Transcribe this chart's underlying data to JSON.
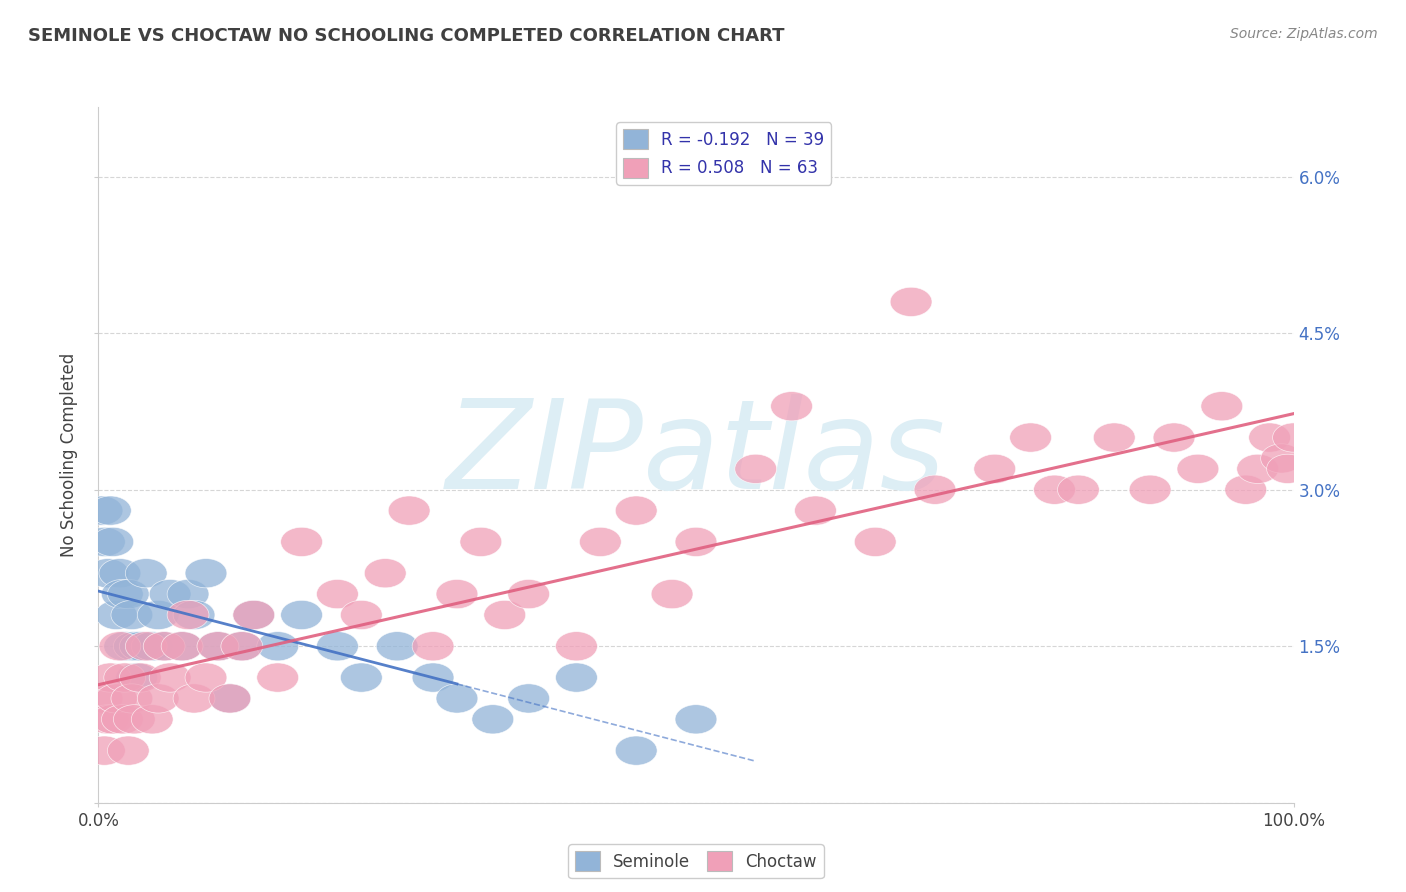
{
  "title": "SEMINOLE VS CHOCTAW NO SCHOOLING COMPLETED CORRELATION CHART",
  "source_text": "Source: ZipAtlas.com",
  "ylabel": "No Schooling Completed",
  "xlim": [
    0,
    100
  ],
  "ylim": [
    0,
    6.667
  ],
  "yticks": [
    0,
    1.5,
    3.0,
    4.5,
    6.0
  ],
  "ytick_labels": [
    "",
    "1.5%",
    "3.0%",
    "4.5%",
    "6.0%"
  ],
  "xtick_labels": [
    "0.0%",
    "100.0%"
  ],
  "legend_line1": "R = -0.192   N = 39",
  "legend_line2": "R = 0.508   N = 63",
  "seminole_color": "#92b4d8",
  "choctaw_color": "#f0a0b8",
  "seminole_line_color": "#4472c4",
  "choctaw_line_color": "#e06080",
  "background_color": "#ffffff",
  "grid_color": "#cccccc",
  "watermark_color": "#ddeef5",
  "seminole_x": [
    0.3,
    0.5,
    0.8,
    1.0,
    1.2,
    1.5,
    1.8,
    2.0,
    2.2,
    2.5,
    2.8,
    3.0,
    3.2,
    3.5,
    4.0,
    4.5,
    5.0,
    5.5,
    6.0,
    7.0,
    7.5,
    8.0,
    9.0,
    10.0,
    11.0,
    12.0,
    13.0,
    15.0,
    17.0,
    20.0,
    22.0,
    25.0,
    28.0,
    30.0,
    33.0,
    36.0,
    40.0,
    45.0,
    50.0
  ],
  "seminole_y": [
    2.8,
    2.5,
    2.2,
    2.8,
    2.5,
    1.8,
    2.2,
    2.0,
    1.5,
    2.0,
    1.8,
    1.5,
    1.2,
    1.5,
    2.2,
    1.5,
    1.8,
    1.5,
    2.0,
    1.5,
    2.0,
    1.8,
    2.2,
    1.5,
    1.0,
    1.5,
    1.8,
    1.5,
    1.8,
    1.5,
    1.2,
    1.5,
    1.2,
    1.0,
    0.8,
    1.0,
    1.2,
    0.5,
    0.8
  ],
  "choctaw_x": [
    0.3,
    0.5,
    0.8,
    1.0,
    1.2,
    1.5,
    1.8,
    2.0,
    2.2,
    2.5,
    2.8,
    3.0,
    3.5,
    4.0,
    4.5,
    5.0,
    5.5,
    6.0,
    7.0,
    7.5,
    8.0,
    9.0,
    10.0,
    11.0,
    12.0,
    13.0,
    15.0,
    17.0,
    20.0,
    22.0,
    24.0,
    26.0,
    28.0,
    30.0,
    32.0,
    34.0,
    36.0,
    40.0,
    42.0,
    45.0,
    48.0,
    50.0,
    55.0,
    58.0,
    60.0,
    65.0,
    68.0,
    70.0,
    75.0,
    78.0,
    80.0,
    82.0,
    85.0,
    88.0,
    90.0,
    92.0,
    94.0,
    96.0,
    97.0,
    98.0,
    99.0,
    99.5,
    100.0
  ],
  "choctaw_y": [
    1.0,
    0.5,
    0.8,
    1.2,
    0.8,
    1.0,
    1.5,
    0.8,
    1.2,
    0.5,
    1.0,
    0.8,
    1.2,
    1.5,
    0.8,
    1.0,
    1.5,
    1.2,
    1.5,
    1.8,
    1.0,
    1.2,
    1.5,
    1.0,
    1.5,
    1.8,
    1.2,
    2.5,
    2.0,
    1.8,
    2.2,
    2.8,
    1.5,
    2.0,
    2.5,
    1.8,
    2.0,
    1.5,
    2.5,
    2.8,
    2.0,
    2.5,
    3.2,
    3.8,
    2.8,
    2.5,
    4.8,
    3.0,
    3.2,
    3.5,
    3.0,
    3.0,
    3.5,
    3.0,
    3.5,
    3.2,
    3.8,
    3.0,
    3.2,
    3.5,
    3.3,
    3.2,
    3.5
  ]
}
